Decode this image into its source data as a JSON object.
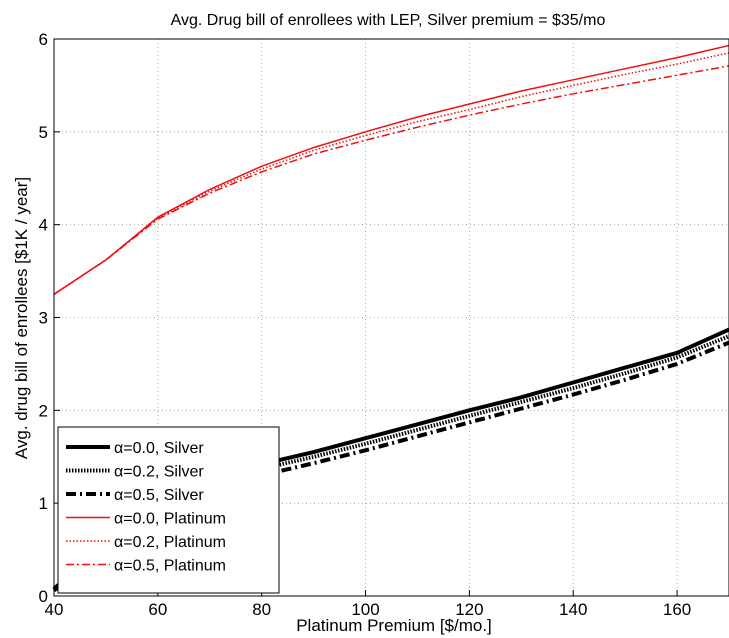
{
  "chart_data": {
    "type": "line",
    "title": "Avg. Drug bill of enrollees with LEP, Silver premium = $35/mo",
    "xlabel": "Platinum Premium [$/mo.]",
    "ylabel": "Avg. drug bill of enrollees [$1K / year]",
    "xlim": [
      40,
      170
    ],
    "ylim": [
      0,
      6
    ],
    "xticks": [
      "40",
      "60",
      "80",
      "100",
      "120",
      "140",
      "160"
    ],
    "yticks": [
      "0",
      "1",
      "2",
      "3",
      "4",
      "5",
      "6"
    ],
    "grid": true,
    "legend_position": "bottom-left",
    "x": [
      40,
      50,
      60,
      70,
      80,
      90,
      100,
      110,
      120,
      130,
      140,
      150,
      160,
      170
    ],
    "series": [
      {
        "name": "α=0.0, Silver",
        "color": "#000000",
        "style": "solid",
        "width": 4,
        "values": [
          0.08,
          0.55,
          0.95,
          1.25,
          1.42,
          1.55,
          1.7,
          1.85,
          2.0,
          2.14,
          2.3,
          2.46,
          2.62,
          2.87
        ]
      },
      {
        "name": "α=0.2, Silver",
        "color": "#000000",
        "style": "dotted",
        "width": 4,
        "values": [
          0.07,
          0.52,
          0.9,
          1.2,
          1.37,
          1.5,
          1.64,
          1.79,
          1.94,
          2.09,
          2.24,
          2.4,
          2.57,
          2.8
        ]
      },
      {
        "name": "α=0.5, Silver",
        "color": "#000000",
        "style": "dashdot",
        "width": 4,
        "values": [
          0.06,
          0.48,
          0.85,
          1.14,
          1.3,
          1.43,
          1.57,
          1.72,
          1.87,
          2.02,
          2.17,
          2.33,
          2.5,
          2.73
        ]
      },
      {
        "name": "α=0.0, Platinum",
        "color": "#ee1111",
        "style": "solid",
        "width": 1.5,
        "values": [
          3.25,
          3.62,
          4.08,
          4.38,
          4.63,
          4.83,
          5.0,
          5.16,
          5.3,
          5.44,
          5.56,
          5.68,
          5.8,
          5.93
        ]
      },
      {
        "name": "α=0.2, Platinum",
        "color": "#ee1111",
        "style": "dotted",
        "width": 1.5,
        "values": [
          3.25,
          3.62,
          4.07,
          4.36,
          4.6,
          4.8,
          4.96,
          5.11,
          5.24,
          5.38,
          5.5,
          5.62,
          5.73,
          5.85
        ]
      },
      {
        "name": "α=0.5, Platinum",
        "color": "#ee1111",
        "style": "dashdot",
        "width": 1.5,
        "values": [
          3.25,
          3.62,
          4.06,
          4.34,
          4.57,
          4.76,
          4.91,
          5.05,
          5.18,
          5.3,
          5.41,
          5.51,
          5.61,
          5.71
        ]
      }
    ]
  }
}
